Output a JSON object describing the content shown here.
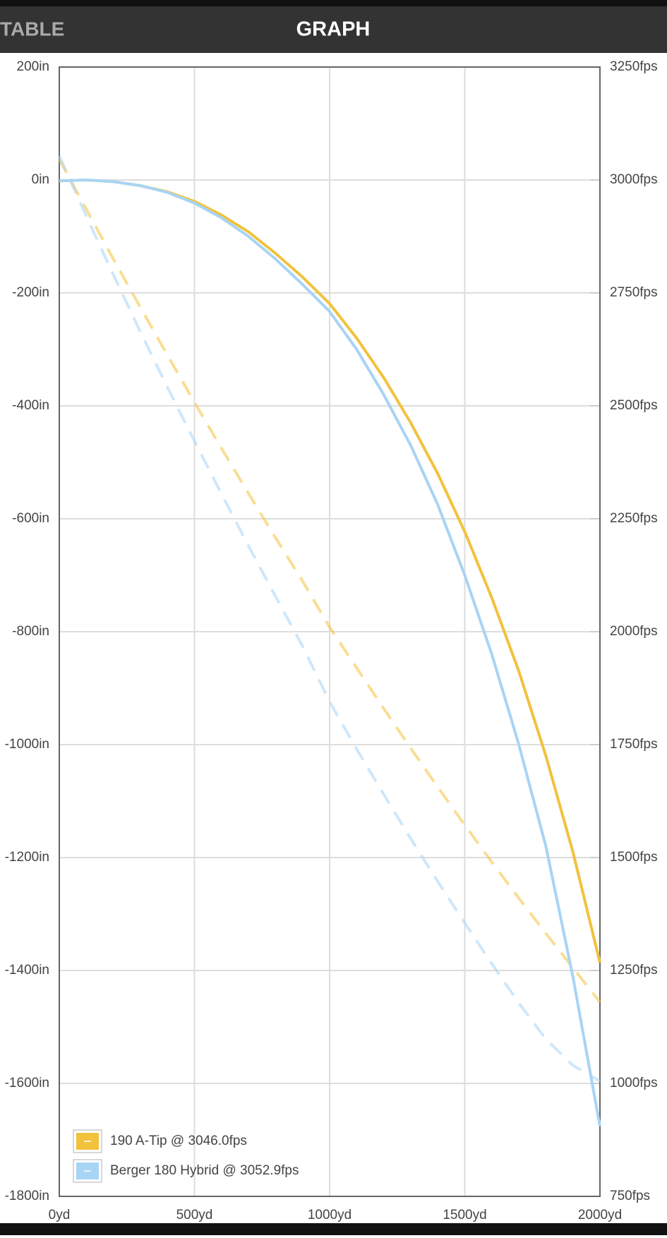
{
  "header": {
    "left_tab": "TABLE",
    "title": "GRAPH"
  },
  "chart_data": {
    "type": "line",
    "x": [
      0,
      100,
      200,
      300,
      400,
      500,
      600,
      700,
      800,
      900,
      1000,
      1100,
      1200,
      1300,
      1400,
      1500,
      1600,
      1700,
      1800,
      1900,
      2000
    ],
    "xlim": [
      0,
      2000
    ],
    "xticks": [
      {
        "value": 0,
        "label": "0yd"
      },
      {
        "value": 500,
        "label": "500yd"
      },
      {
        "value": 1000,
        "label": "1000yd"
      },
      {
        "value": 1500,
        "label": "1500yd"
      },
      {
        "value": 2000,
        "label": "2000yd"
      }
    ],
    "ylim": [
      -1800,
      200
    ],
    "yticks": [
      {
        "value": 200,
        "label": "200in"
      },
      {
        "value": 0,
        "label": "0in"
      },
      {
        "value": -200,
        "label": "-200in"
      },
      {
        "value": -400,
        "label": "-400in"
      },
      {
        "value": -600,
        "label": "-600in"
      },
      {
        "value": -800,
        "label": "-800in"
      },
      {
        "value": -1000,
        "label": "-1000in"
      },
      {
        "value": -1200,
        "label": "-1200in"
      },
      {
        "value": -1400,
        "label": "-1400in"
      },
      {
        "value": -1600,
        "label": "-1600in"
      },
      {
        "value": -1800,
        "label": "-1800in"
      }
    ],
    "y2lim": [
      750,
      3250
    ],
    "y2ticks": [
      {
        "value": 3250,
        "label": "3250fps"
      },
      {
        "value": 3000,
        "label": "3000fps"
      },
      {
        "value": 2750,
        "label": "2750fps"
      },
      {
        "value": 2500,
        "label": "2500fps"
      },
      {
        "value": 2250,
        "label": "2250fps"
      },
      {
        "value": 2000,
        "label": "2000fps"
      },
      {
        "value": 1750,
        "label": "1750fps"
      },
      {
        "value": 1500,
        "label": "1500fps"
      },
      {
        "value": 1250,
        "label": "1250fps"
      },
      {
        "value": 1000,
        "label": "1000fps"
      },
      {
        "value": 750,
        "label": "750fps"
      }
    ],
    "grid": true,
    "legend": "lower left",
    "series": [
      {
        "name": "190 A-Tip @ 3046.0fps",
        "color": "#f2c23d",
        "values": [
          -1.5,
          0,
          -3,
          -10,
          -21,
          -38,
          -62,
          -92,
          -130,
          -172,
          -219,
          -280,
          -350,
          -430,
          -520,
          -623,
          -740,
          -870,
          -1020,
          -1190,
          -1386
        ],
        "velocity": [
          3046,
          2935,
          2825,
          2718,
          2612,
          2508,
          2406,
          2306,
          2208,
          2112,
          2010,
          1920,
          1830,
          1742,
          1656,
          1572,
          1490,
          1410,
          1332,
          1256,
          1180
        ]
      },
      {
        "name": "Berger 180 Hybrid @ 3052.9fps",
        "color": "#a8d4f5",
        "values": [
          -1.5,
          0,
          -3,
          -10,
          -22,
          -41,
          -67,
          -100,
          -140,
          -185,
          -233,
          -300,
          -380,
          -470,
          -575,
          -700,
          -840,
          -1000,
          -1180,
          -1411,
          -1676
        ],
        "velocity": [
          3053,
          2920,
          2790,
          2664,
          2541,
          2422,
          2305,
          2190,
          2078,
          1968,
          1845,
          1740,
          1640,
          1542,
          1447,
          1355,
          1265,
          1178,
          1098,
          1040,
          1005
        ]
      }
    ]
  }
}
